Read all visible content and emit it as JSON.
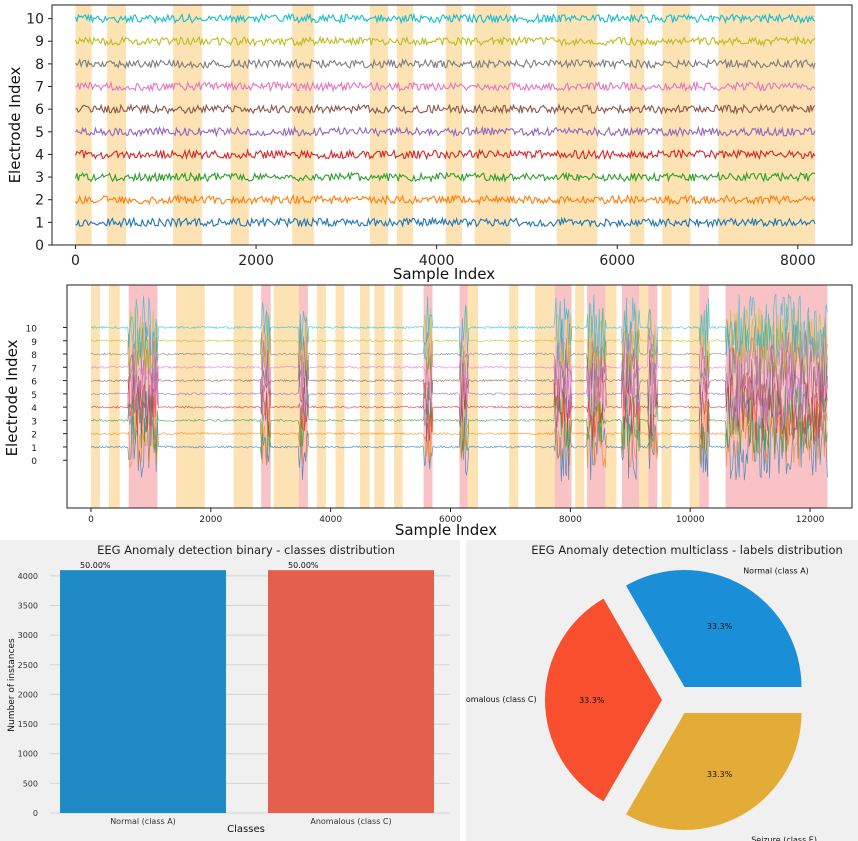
{
  "chart_data": [
    {
      "type": "line",
      "title": "",
      "xlabel": "Sample Index",
      "ylabel": "Electrode Index",
      "xlim": [
        -260,
        8600
      ],
      "ylim": [
        0,
        10.6
      ],
      "xticks": [
        0,
        2000,
        4000,
        6000,
        8000
      ],
      "yticks": [
        0,
        1,
        2,
        3,
        4,
        5,
        6,
        7,
        8,
        9,
        10
      ],
      "x_range": [
        0,
        8190
      ],
      "series": [
        {
          "name": "1",
          "offset": 1,
          "color": "#1f77b4"
        },
        {
          "name": "2",
          "offset": 2,
          "color": "#ff7f0e"
        },
        {
          "name": "3",
          "offset": 3,
          "color": "#2ca02c"
        },
        {
          "name": "4",
          "offset": 4,
          "color": "#d62728"
        },
        {
          "name": "5",
          "offset": 5,
          "color": "#9467bd"
        },
        {
          "name": "6",
          "offset": 6,
          "color": "#8c564b"
        },
        {
          "name": "7",
          "offset": 7,
          "color": "#e377c2"
        },
        {
          "name": "8",
          "offset": 8,
          "color": "#7f7f7f"
        },
        {
          "name": "9",
          "offset": 9,
          "color": "#bcbd22"
        },
        {
          "name": "10",
          "offset": 10,
          "color": "#17becf"
        }
      ],
      "highlight_spans": [
        {
          "x0": 0,
          "x1": 180,
          "label": "anomalous"
        },
        {
          "x0": 350,
          "x1": 560,
          "label": "anomalous"
        },
        {
          "x0": 1080,
          "x1": 1400,
          "label": "anomalous"
        },
        {
          "x0": 1720,
          "x1": 1920,
          "label": "anomalous"
        },
        {
          "x0": 2400,
          "x1": 2640,
          "label": "anomalous"
        },
        {
          "x0": 3260,
          "x1": 3460,
          "label": "anomalous"
        },
        {
          "x0": 3560,
          "x1": 3740,
          "label": "anomalous"
        },
        {
          "x0": 4100,
          "x1": 4280,
          "label": "anomalous"
        },
        {
          "x0": 4420,
          "x1": 4820,
          "label": "anomalous"
        },
        {
          "x0": 5330,
          "x1": 5780,
          "label": "anomalous"
        },
        {
          "x0": 6140,
          "x1": 6300,
          "label": "anomalous"
        },
        {
          "x0": 6500,
          "x1": 6810,
          "label": "anomalous"
        },
        {
          "x0": 7120,
          "x1": 8190,
          "label": "anomalous"
        }
      ]
    },
    {
      "type": "line",
      "title": "",
      "xlabel": "Sample Index",
      "ylabel": "Electrode Index",
      "xlim": [
        -400,
        12700
      ],
      "ylim": [
        -3.6,
        13.2
      ],
      "xticks": [
        0,
        2000,
        4000,
        6000,
        8000,
        10000,
        12000
      ],
      "yticks": [
        0,
        1,
        2,
        3,
        4,
        5,
        6,
        7,
        8,
        9,
        10
      ],
      "x_range": [
        0,
        12290
      ],
      "series": [
        {
          "name": "1",
          "offset": 1,
          "color": "#1f77b4"
        },
        {
          "name": "2",
          "offset": 2,
          "color": "#ff7f0e"
        },
        {
          "name": "3",
          "offset": 3,
          "color": "#2ca02c"
        },
        {
          "name": "4",
          "offset": 4,
          "color": "#d62728"
        },
        {
          "name": "5",
          "offset": 5,
          "color": "#9467bd"
        },
        {
          "name": "6",
          "offset": 6,
          "color": "#8c564b"
        },
        {
          "name": "7",
          "offset": 7,
          "color": "#e377c2"
        },
        {
          "name": "8",
          "offset": 8,
          "color": "#7f7f7f"
        },
        {
          "name": "9",
          "offset": 9,
          "color": "#bcbd22"
        },
        {
          "name": "10",
          "offset": 10,
          "color": "#17becf"
        }
      ],
      "highlight_spans": [
        {
          "x0": 0,
          "x1": 150,
          "label": "anomalous"
        },
        {
          "x0": 300,
          "x1": 480,
          "label": "anomalous"
        },
        {
          "x0": 630,
          "x1": 1110,
          "label": "seizure"
        },
        {
          "x0": 1420,
          "x1": 1900,
          "label": "anomalous"
        },
        {
          "x0": 2380,
          "x1": 2700,
          "label": "anomalous"
        },
        {
          "x0": 2840,
          "x1": 3000,
          "label": "seizure"
        },
        {
          "x0": 3050,
          "x1": 3470,
          "label": "anomalous"
        },
        {
          "x0": 3470,
          "x1": 3620,
          "label": "seizure"
        },
        {
          "x0": 3770,
          "x1": 3920,
          "label": "anomalous"
        },
        {
          "x0": 4080,
          "x1": 4230,
          "label": "anomalous"
        },
        {
          "x0": 4490,
          "x1": 4650,
          "label": "anomalous"
        },
        {
          "x0": 4730,
          "x1": 4900,
          "label": "anomalous"
        },
        {
          "x0": 5060,
          "x1": 5200,
          "label": "anomalous"
        },
        {
          "x0": 5550,
          "x1": 5700,
          "label": "seizure"
        },
        {
          "x0": 6150,
          "x1": 6290,
          "label": "seizure"
        },
        {
          "x0": 6290,
          "x1": 6460,
          "label": "anomalous"
        },
        {
          "x0": 6980,
          "x1": 7130,
          "label": "anomalous"
        },
        {
          "x0": 7410,
          "x1": 7740,
          "label": "anomalous"
        },
        {
          "x0": 7740,
          "x1": 8020,
          "label": "seizure"
        },
        {
          "x0": 8080,
          "x1": 8230,
          "label": "anomalous"
        },
        {
          "x0": 8280,
          "x1": 8590,
          "label": "seizure"
        },
        {
          "x0": 8590,
          "x1": 8770,
          "label": "anomalous"
        },
        {
          "x0": 8860,
          "x1": 9150,
          "label": "seizure"
        },
        {
          "x0": 9150,
          "x1": 9300,
          "label": "anomalous"
        },
        {
          "x0": 9300,
          "x1": 9450,
          "label": "seizure"
        },
        {
          "x0": 9520,
          "x1": 9690,
          "label": "anomalous"
        },
        {
          "x0": 9990,
          "x1": 10150,
          "label": "anomalous"
        },
        {
          "x0": 10150,
          "x1": 10310,
          "label": "seizure"
        },
        {
          "x0": 10590,
          "x1": 12290,
          "label": "seizure"
        }
      ],
      "burst_spans": [
        [
          630,
          1110
        ],
        [
          2840,
          3000
        ],
        [
          3470,
          3620
        ],
        [
          5550,
          5700
        ],
        [
          6150,
          6290
        ],
        [
          7740,
          8020
        ],
        [
          8280,
          8590
        ],
        [
          8860,
          9150
        ],
        [
          9300,
          9450
        ],
        [
          10150,
          10310
        ],
        [
          10590,
          12290
        ]
      ]
    },
    {
      "type": "bar",
      "title": "EEG Anomaly detection binary - classes distribution",
      "categories": [
        "Normal (class A)",
        "Anomalous (class C)"
      ],
      "values": [
        4096,
        4096
      ],
      "data_labels": [
        "50.00%",
        "50.00%"
      ],
      "colors": [
        "#1f8ac4",
        "#e4604c"
      ],
      "xlabel": "Classes",
      "ylabel": "Number of instances",
      "ylim": [
        0,
        4200
      ],
      "yticks": [
        0,
        500,
        1000,
        1500,
        2000,
        2500,
        3000,
        3500,
        4000
      ]
    },
    {
      "type": "pie",
      "title": "EEG Anomaly detection multiclass - labels distribution",
      "labels": [
        "Normal (class A)",
        "Anomalous (class C)",
        "Seizure (class E)"
      ],
      "values": [
        33.3,
        33.3,
        33.3
      ],
      "pct_labels": [
        "33.3%",
        "33.3%",
        "33.3%"
      ],
      "colors": [
        "#1a8fd8",
        "#f8502e",
        "#e3ac36"
      ],
      "explode": true
    }
  ],
  "colors": {
    "anomalous_span": "#fde2b3",
    "seizure_span": "#f9c3c6",
    "panel_bg": "#f0f0f0"
  }
}
